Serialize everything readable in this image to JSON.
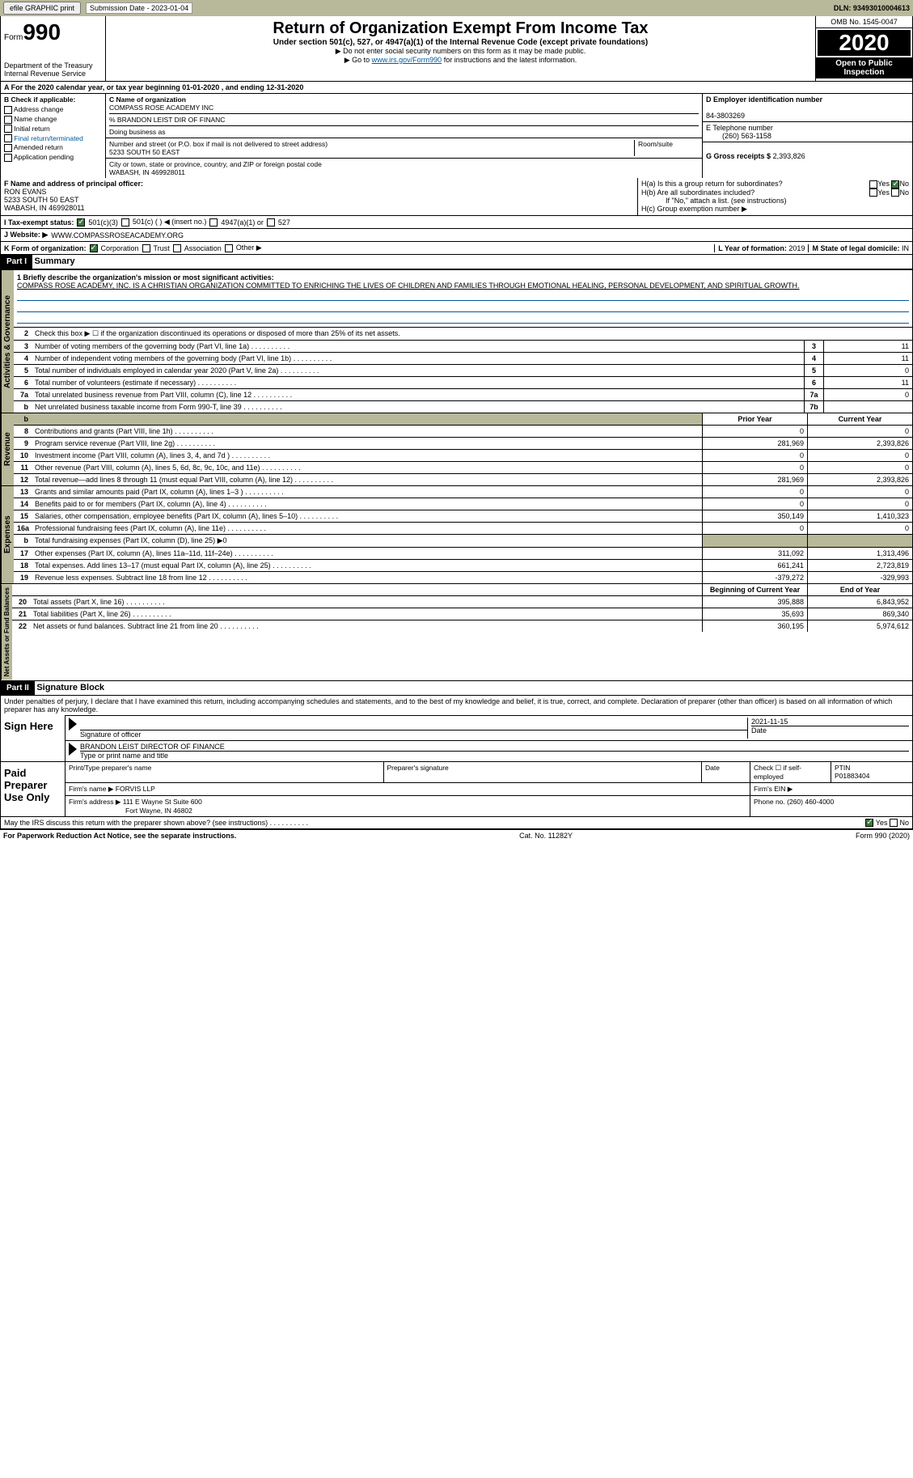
{
  "topbar": {
    "efile": "efile GRAPHIC print",
    "sub_label": "Submission Date - 2023-01-04",
    "dln": "DLN: 93493010004613"
  },
  "header": {
    "form": "Form",
    "form_no": "990",
    "dept": "Department of the Treasury\nInternal Revenue Service",
    "title": "Return of Organization Exempt From Income Tax",
    "sub": "Under section 501(c), 527, or 4947(a)(1) of the Internal Revenue Code (except private foundations)",
    "note1": "▶ Do not enter social security numbers on this form as it may be made public.",
    "note2_pre": "▶ Go to ",
    "note2_link": "www.irs.gov/Form990",
    "note2_post": " for instructions and the latest information.",
    "omb": "OMB No. 1545-0047",
    "year": "2020",
    "open": "Open to Public Inspection"
  },
  "row_a": "A For the 2020 calendar year, or tax year beginning 01-01-2020   , and ending 12-31-2020",
  "col_b": {
    "hdr": "B Check if applicable:",
    "items": [
      "Address change",
      "Name change",
      "Initial return",
      "Final return/terminated",
      "Amended return",
      "Application pending"
    ]
  },
  "col_c": {
    "name_lbl": "C Name of organization",
    "name": "COMPASS ROSE ACADEMY INC",
    "care": "% BRANDON LEIST DIR OF FINANC",
    "dba_lbl": "Doing business as",
    "addr_lbl": "Number and street (or P.O. box if mail is not delivered to street address)",
    "addr": "5233 SOUTH 50 EAST",
    "room_lbl": "Room/suite",
    "city_lbl": "City or town, state or province, country, and ZIP or foreign postal code",
    "city": "WABASH, IN  469928011"
  },
  "col_d": {
    "ein_lbl": "D Employer identification number",
    "ein": "84-3803269",
    "tel_lbl": "E Telephone number",
    "tel": "(260) 563-1158",
    "gross_lbl": "G Gross receipts $",
    "gross": "2,393,826"
  },
  "col_f": {
    "lbl": "F Name and address of principal officer:",
    "name": "RON EVANS",
    "addr1": "5233 SOUTH 50 EAST",
    "addr2": "WABASH, IN  469928011"
  },
  "col_h": {
    "ha": "H(a)  Is this a group return for subordinates?",
    "hb": "H(b)  Are all subordinates included?",
    "hb_note": "If \"No,\" attach a list. (see instructions)",
    "hc": "H(c)  Group exemption number ▶",
    "yes": "Yes",
    "no": "No"
  },
  "row_i": {
    "lbl": "I   Tax-exempt status:",
    "o1": "501(c)(3)",
    "o2": "501(c) (  ) ◀ (insert no.)",
    "o3": "4947(a)(1) or",
    "o4": "527"
  },
  "row_j": {
    "lbl": "J  Website: ▶",
    "val": "WWW.COMPASSROSEACADEMY.ORG"
  },
  "row_k": {
    "lbl": "K Form of organization:",
    "o1": "Corporation",
    "o2": "Trust",
    "o3": "Association",
    "o4": "Other ▶",
    "l_lbl": "L Year of formation:",
    "l_val": "2019",
    "m_lbl": "M State of legal domicile:",
    "m_val": "IN"
  },
  "part1": {
    "hdr": "Part I",
    "title": "Summary"
  },
  "mission": {
    "lbl": "1  Briefly describe the organization's mission or most significant activities:",
    "text": "COMPASS ROSE ACADEMY, INC. IS A CHRISTIAN ORGANIZATION COMMITTED TO ENRICHING THE LIVES OF CHILDREN AND FAMILIES THROUGH EMOTIONAL HEALING, PERSONAL DEVELOPMENT, AND SPIRITUAL GROWTH."
  },
  "vtabs": {
    "gov": "Activities & Governance",
    "rev": "Revenue",
    "exp": "Expenses",
    "net": "Net Assets or Fund Balances"
  },
  "gov_lines": [
    {
      "n": "2",
      "t": "Check this box ▶ ☐  if the organization discontinued its operations or disposed of more than 25% of its net assets."
    },
    {
      "n": "3",
      "t": "Number of voting members of the governing body (Part VI, line 1a)",
      "box": "3",
      "v": "11"
    },
    {
      "n": "4",
      "t": "Number of independent voting members of the governing body (Part VI, line 1b)",
      "box": "4",
      "v": "11"
    },
    {
      "n": "5",
      "t": "Total number of individuals employed in calendar year 2020 (Part V, line 2a)",
      "box": "5",
      "v": "0"
    },
    {
      "n": "6",
      "t": "Total number of volunteers (estimate if necessary)",
      "box": "6",
      "v": "11"
    },
    {
      "n": "7a",
      "t": "Total unrelated business revenue from Part VIII, column (C), line 12",
      "box": "7a",
      "v": "0"
    },
    {
      "n": "b",
      "t": "Net unrelated business taxable income from Form 990-T, line 39",
      "box": "7b",
      "v": ""
    }
  ],
  "col_hdrs": {
    "prior": "Prior Year",
    "current": "Current Year",
    "beg": "Beginning of Current Year",
    "end": "End of Year"
  },
  "rev_lines": [
    {
      "n": "8",
      "t": "Contributions and grants (Part VIII, line 1h)",
      "p": "0",
      "c": "0"
    },
    {
      "n": "9",
      "t": "Program service revenue (Part VIII, line 2g)",
      "p": "281,969",
      "c": "2,393,826"
    },
    {
      "n": "10",
      "t": "Investment income (Part VIII, column (A), lines 3, 4, and 7d )",
      "p": "0",
      "c": "0"
    },
    {
      "n": "11",
      "t": "Other revenue (Part VIII, column (A), lines 5, 6d, 8c, 9c, 10c, and 11e)",
      "p": "0",
      "c": "0"
    },
    {
      "n": "12",
      "t": "Total revenue—add lines 8 through 11 (must equal Part VIII, column (A), line 12)",
      "p": "281,969",
      "c": "2,393,826"
    }
  ],
  "exp_lines": [
    {
      "n": "13",
      "t": "Grants and similar amounts paid (Part IX, column (A), lines 1–3 )",
      "p": "0",
      "c": "0"
    },
    {
      "n": "14",
      "t": "Benefits paid to or for members (Part IX, column (A), line 4)",
      "p": "0",
      "c": "0"
    },
    {
      "n": "15",
      "t": "Salaries, other compensation, employee benefits (Part IX, column (A), lines 5–10)",
      "p": "350,149",
      "c": "1,410,323"
    },
    {
      "n": "16a",
      "t": "Professional fundraising fees (Part IX, column (A), line 11e)",
      "p": "0",
      "c": "0"
    },
    {
      "n": "b",
      "t": "Total fundraising expenses (Part IX, column (D), line 25) ▶0",
      "shaded": true
    },
    {
      "n": "17",
      "t": "Other expenses (Part IX, column (A), lines 11a–11d, 11f–24e)",
      "p": "311,092",
      "c": "1,313,496"
    },
    {
      "n": "18",
      "t": "Total expenses. Add lines 13–17 (must equal Part IX, column (A), line 25)",
      "p": "661,241",
      "c": "2,723,819"
    },
    {
      "n": "19",
      "t": "Revenue less expenses. Subtract line 18 from line 12",
      "p": "-379,272",
      "c": "-329,993"
    }
  ],
  "net_lines": [
    {
      "n": "20",
      "t": "Total assets (Part X, line 16)",
      "p": "395,888",
      "c": "6,843,952"
    },
    {
      "n": "21",
      "t": "Total liabilities (Part X, line 26)",
      "p": "35,693",
      "c": "869,340"
    },
    {
      "n": "22",
      "t": "Net assets or fund balances. Subtract line 21 from line 20",
      "p": "360,195",
      "c": "5,974,612"
    }
  ],
  "part2": {
    "hdr": "Part II",
    "title": "Signature Block"
  },
  "sig": {
    "penalty": "Under penalties of perjury, I declare that I have examined this return, including accompanying schedules and statements, and to the best of my knowledge and belief, it is true, correct, and complete. Declaration of preparer (other than officer) is based on all information of which preparer has any knowledge.",
    "sign_here": "Sign Here",
    "sig_officer": "Signature of officer",
    "date": "Date",
    "sig_date": "2021-11-15",
    "name": "BRANDON LEIST  DIRECTOR OF FINANCE",
    "name_lbl": "Type or print name and title"
  },
  "prep": {
    "hdr": "Paid Preparer Use Only",
    "print_lbl": "Print/Type preparer's name",
    "sig_lbl": "Preparer's signature",
    "date_lbl": "Date",
    "check_lbl": "Check ☐ if self-employed",
    "ptin_lbl": "PTIN",
    "ptin": "P01883404",
    "firm_name_lbl": "Firm's name   ▶",
    "firm_name": "FORVIS LLP",
    "firm_ein_lbl": "Firm's EIN ▶",
    "firm_addr_lbl": "Firm's address ▶",
    "firm_addr": "111 E Wayne St Suite 600",
    "firm_city": "Fort Wayne, IN  46802",
    "phone_lbl": "Phone no.",
    "phone": "(260) 460-4000"
  },
  "discuss": {
    "q": "May the IRS discuss this return with the preparer shown above? (see instructions)",
    "yes": "Yes",
    "no": "No"
  },
  "footer": {
    "left": "For Paperwork Reduction Act Notice, see the separate instructions.",
    "mid": "Cat. No. 11282Y",
    "right": "Form 990 (2020)"
  }
}
